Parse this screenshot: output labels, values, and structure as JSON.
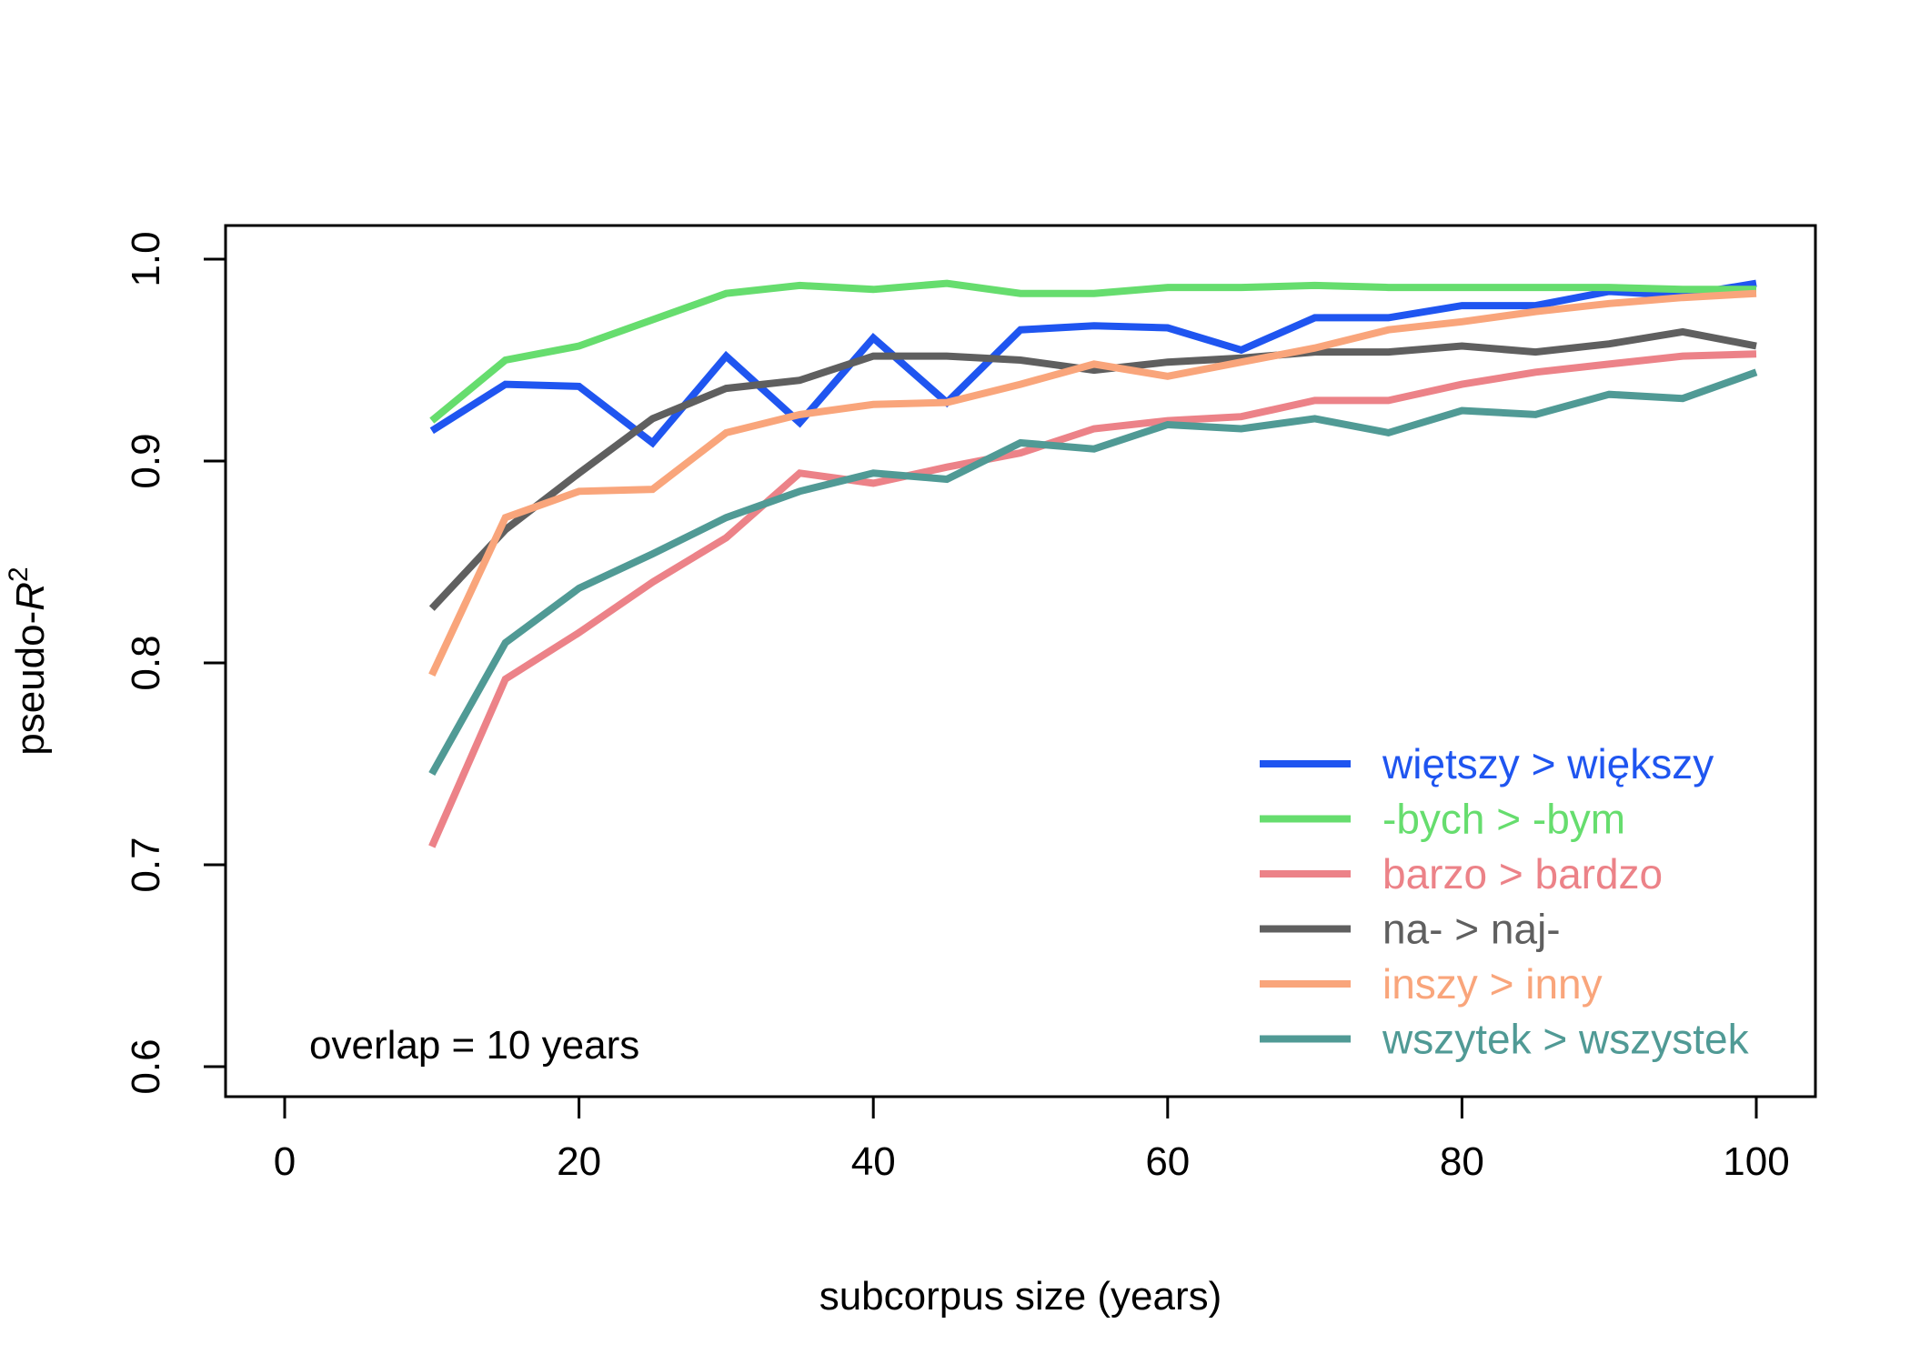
{
  "chart_data": {
    "type": "line",
    "title": "",
    "xlabel": "subcorpus size (years)",
    "ylabel_prefix": "pseudo-",
    "ylabel_var": "R",
    "ylabel_sup": "2",
    "xlim": [
      0,
      100
    ],
    "ylim": [
      0.6,
      1.0
    ],
    "xticks": [
      0,
      20,
      40,
      60,
      80,
      100
    ],
    "yticks": [
      0.6,
      0.7,
      0.8,
      0.9,
      1.0
    ],
    "xtick_labels": [
      "0",
      "20",
      "40",
      "60",
      "80",
      "100"
    ],
    "ytick_labels": [
      "0.6",
      "0.7",
      "0.8",
      "0.9",
      "1.0"
    ],
    "annotation": "overlap = 10 years",
    "legend_position": "bottom-right",
    "grid": false,
    "x": [
      10,
      15,
      20,
      25,
      30,
      35,
      40,
      45,
      50,
      55,
      60,
      65,
      70,
      75,
      80,
      85,
      90,
      95,
      100
    ],
    "series": [
      {
        "name": "więtszy > większy",
        "color": "#1f55f0",
        "values": [
          0.915,
          0.938,
          0.937,
          0.909,
          0.952,
          0.919,
          0.961,
          0.929,
          0.965,
          0.967,
          0.966,
          0.955,
          0.971,
          0.971,
          0.977,
          0.977,
          0.984,
          0.982,
          0.988
        ]
      },
      {
        "name": "-bych > -bym",
        "color": "#66dd6e",
        "values": [
          0.92,
          0.95,
          0.957,
          0.97,
          0.983,
          0.987,
          0.985,
          0.988,
          0.983,
          0.983,
          0.986,
          0.986,
          0.987,
          0.986,
          0.986,
          0.986,
          0.986,
          0.985,
          0.985
        ]
      },
      {
        "name": "barzo > bardzo",
        "color": "#ec8288",
        "values": [
          0.709,
          0.792,
          0.815,
          0.84,
          0.862,
          0.894,
          0.889,
          0.897,
          0.904,
          0.916,
          0.92,
          0.922,
          0.93,
          0.93,
          0.938,
          0.944,
          0.948,
          0.952,
          0.953
        ]
      },
      {
        "name": "na- > naj-",
        "color": "#5f5f5f",
        "values": [
          0.827,
          0.866,
          0.894,
          0.921,
          0.936,
          0.94,
          0.952,
          0.952,
          0.95,
          0.945,
          0.949,
          0.951,
          0.954,
          0.954,
          0.957,
          0.954,
          0.958,
          0.964,
          0.957
        ]
      },
      {
        "name": "inszy > inny",
        "color": "#f9a57b",
        "values": [
          0.794,
          0.872,
          0.885,
          0.886,
          0.914,
          0.923,
          0.928,
          0.929,
          0.938,
          0.948,
          0.942,
          0.949,
          0.956,
          0.965,
          0.969,
          0.974,
          0.978,
          0.981,
          0.983
        ]
      },
      {
        "name": "wszytek > wszystek",
        "color": "#509a95",
        "values": [
          0.745,
          0.81,
          0.837,
          0.854,
          0.872,
          0.885,
          0.894,
          0.891,
          0.909,
          0.906,
          0.918,
          0.916,
          0.921,
          0.914,
          0.925,
          0.923,
          0.933,
          0.931,
          0.944
        ]
      }
    ]
  }
}
